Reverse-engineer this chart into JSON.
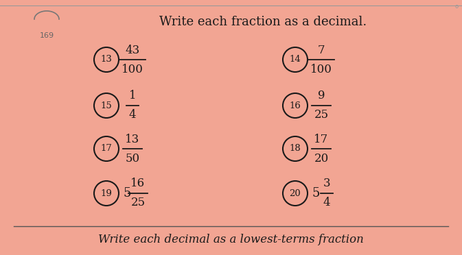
{
  "bg_color": "#f2a593",
  "text_color": "#1a1a1a",
  "title": "Write each fraction as a decimal.",
  "bottom_text": "Write each decimal as a lowest-terms fraction",
  "page_note": "169",
  "items_left": [
    {
      "num": "13",
      "whole": "",
      "numer": "43",
      "denom": "100"
    },
    {
      "num": "15",
      "whole": "",
      "numer": "1",
      "denom": "4"
    },
    {
      "num": "17",
      "whole": "",
      "numer": "13",
      "denom": "50"
    },
    {
      "num": "19",
      "whole": "5",
      "numer": "16",
      "denom": "25"
    }
  ],
  "items_right": [
    {
      "num": "14",
      "whole": "",
      "numer": "7",
      "denom": "100"
    },
    {
      "num": "16",
      "whole": "",
      "numer": "9",
      "denom": "25"
    },
    {
      "num": "18",
      "whole": "",
      "numer": "17",
      "denom": "20"
    },
    {
      "num": "20",
      "whole": "5",
      "numer": "3",
      "denom": "4"
    }
  ],
  "figsize": [
    6.73,
    3.72
  ],
  "dpi": 100
}
